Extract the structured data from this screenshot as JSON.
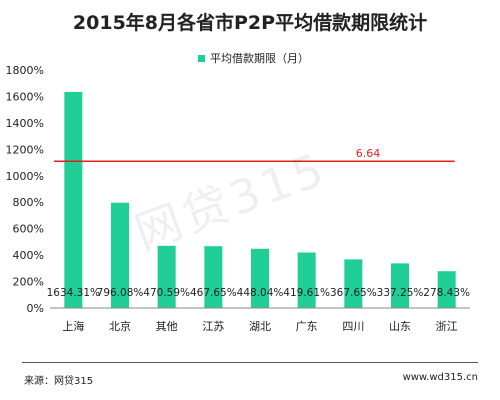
{
  "chart_data": {
    "type": "bar",
    "title": "2015年8月各省市P2P平均借款期限统计",
    "legend": {
      "label": "平均借款期限（月）",
      "placement": "top-center"
    },
    "categories": [
      "上海",
      "北京",
      "其他",
      "江苏",
      "湖北",
      "广东",
      "四川",
      "山东",
      "浙江"
    ],
    "series": [
      {
        "name": "平均借款期限（月）",
        "values": [
          1634.31,
          796.08,
          470.59,
          467.65,
          448.04,
          419.61,
          367.65,
          337.25,
          278.43
        ],
        "labels": [
          "1634.31%",
          "796.08%",
          "470.59%",
          "467.65%",
          "448.04%",
          "419.61%",
          "367.65%",
          "337.25%",
          "278.43%"
        ]
      }
    ],
    "yticks": [
      "0%",
      "200%",
      "400%",
      "600%",
      "800%",
      "1000%",
      "1200%",
      "1400%",
      "1600%",
      "1800%"
    ],
    "ylim": [
      0,
      1800
    ],
    "reference_line": {
      "value": 1110,
      "label": "6.64"
    },
    "grid": false,
    "colors": {
      "bar": "#1fcf96",
      "reference": "#e02020",
      "axis": "#888888"
    }
  },
  "watermark": "网贷315",
  "footer": {
    "source": "来源：网贷315",
    "site": "www.wd315.cn"
  }
}
